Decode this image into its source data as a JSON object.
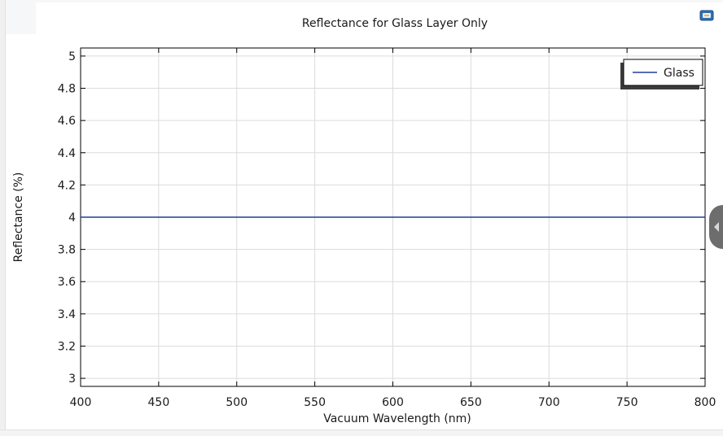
{
  "chart_data": {
    "type": "line",
    "title": "Reflectance for Glass Layer Only",
    "xlabel": "Vacuum Wavelength (nm)",
    "ylabel": "Reflectance (%)",
    "xlim": [
      400,
      800
    ],
    "ylim": [
      2.95,
      5.05
    ],
    "x_ticks": [
      400,
      450,
      500,
      550,
      600,
      650,
      700,
      750,
      800
    ],
    "y_ticks": [
      3,
      3.2,
      3.4,
      3.6,
      3.8,
      4,
      4.2,
      4.4,
      4.6,
      4.8,
      5
    ],
    "y_tick_labels": [
      "3",
      "3.2",
      "3.4",
      "3.6",
      "3.8",
      "4",
      "4.2",
      "4.4",
      "4.6",
      "4.8",
      "5"
    ],
    "grid": true,
    "legend_position": "top-right",
    "series": [
      {
        "name": "Glass",
        "color": "#1f3f9a",
        "x": [
          400,
          450,
          500,
          550,
          600,
          650,
          700,
          750,
          800
        ],
        "y": [
          4,
          4,
          4,
          4,
          4,
          4,
          4,
          4,
          4
        ]
      }
    ]
  },
  "toolbar": {
    "export_icon": "image-export-icon"
  },
  "side_panel": {
    "toggle_icon": "chevron-left-icon"
  }
}
